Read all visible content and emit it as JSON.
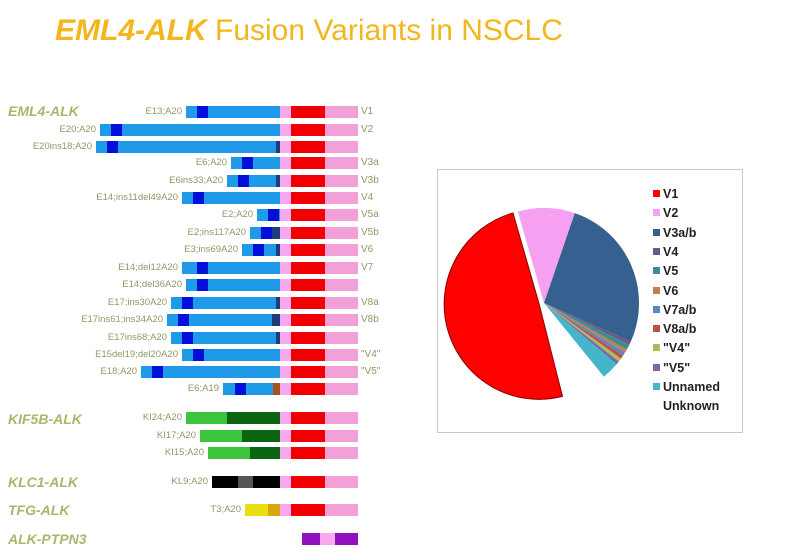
{
  "title": {
    "italic": "EML4-ALK",
    "rest": " Fusion Variants in NSCLC"
  },
  "groups": [
    "EML4-ALK",
    "KIF5B-ALK",
    "KLC1-ALK",
    "TFG-ALK",
    "ALK-PTPN3"
  ],
  "rows": [
    {
      "label": "E13;A20",
      "variant": "V1"
    },
    {
      "label": "E20;A20",
      "variant": "V2"
    },
    {
      "label": "E20ins18;A20",
      "variant": ""
    },
    {
      "label": "E6;A20",
      "variant": "V3a"
    },
    {
      "label": "E6ins33;A20",
      "variant": "V3b"
    },
    {
      "label": "E14;ins11del49A20",
      "variant": "V4"
    },
    {
      "label": "E2;A20",
      "variant": "V5a"
    },
    {
      "label": "E2;ins117A20",
      "variant": "V5b"
    },
    {
      "label": "E3;ins69A20",
      "variant": "V6"
    },
    {
      "label": "E14;del12A20",
      "variant": "V7"
    },
    {
      "label": "E14;del36A20",
      "variant": ""
    },
    {
      "label": "E17;ins30A20",
      "variant": "V8a"
    },
    {
      "label": "E17ins61;ins34A20",
      "variant": "V8b"
    },
    {
      "label": "E17ins68;A20",
      "variant": ""
    },
    {
      "label": "E15del19;del20A20",
      "variant": "\"V4\""
    },
    {
      "label": "E18;A20",
      "variant": "\"V5\""
    },
    {
      "label": "E6;A19",
      "variant": ""
    },
    {
      "label": "KI24;A20",
      "variant": ""
    },
    {
      "label": "KI17;A20",
      "variant": ""
    },
    {
      "label": "KI15;A20",
      "variant": ""
    },
    {
      "label": "KL9;A20",
      "variant": ""
    },
    {
      "label": "T3;A20",
      "variant": ""
    },
    {
      "label": "",
      "variant": ""
    }
  ],
  "chart_data": {
    "type": "pie",
    "title": "",
    "legend_position": "right",
    "slices": [
      {
        "name": "V1",
        "value": 49.5,
        "color": "#ff0000"
      },
      {
        "name": "V2",
        "value": 9.7,
        "color": "#f5a0f0"
      },
      {
        "name": "V3a/b",
        "value": 26.4,
        "color": "#35608f"
      },
      {
        "name": "V4",
        "value": 0.6,
        "color": "#6a5a85"
      },
      {
        "name": "V5",
        "value": 0.9,
        "color": "#3f8a94"
      },
      {
        "name": "V6",
        "value": 0.6,
        "color": "#c08050"
      },
      {
        "name": "V7a/b",
        "value": 0.6,
        "color": "#5b86c0"
      },
      {
        "name": "V8a/b",
        "value": 0.6,
        "color": "#b85050"
      },
      {
        "name": "\"V4\"",
        "value": 0.6,
        "color": "#a8be58"
      },
      {
        "name": "\"V5\"",
        "value": 0.6,
        "color": "#7a6aa8"
      },
      {
        "name": "Unnamed",
        "value": 3.0,
        "color": "#45b5cc"
      },
      {
        "name": "Unknown",
        "value": 6.9,
        "color": "#ffffff"
      }
    ]
  }
}
